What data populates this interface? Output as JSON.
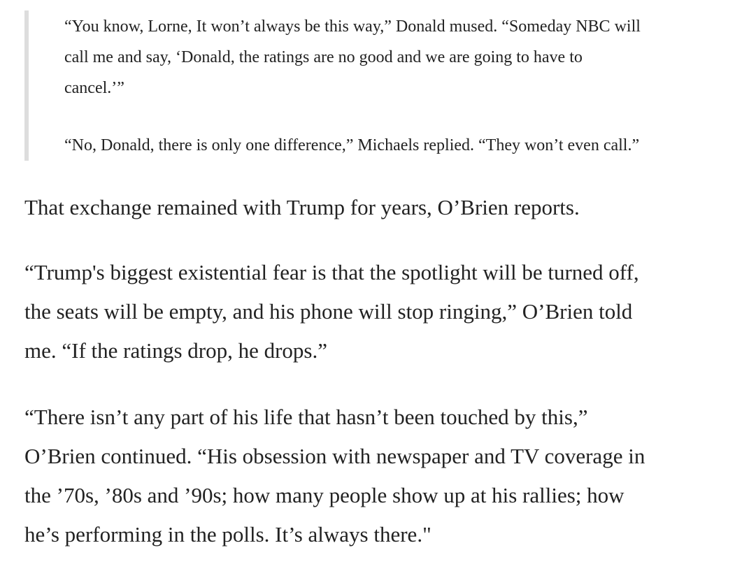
{
  "blockquote": {
    "paragraphs": [
      [
        "“You know, Lorne, It won’t always be this way,” Donald mused. “Someday NBC will",
        "call me and say, ‘Donald, the ratings are no good and we are going to have to",
        "cancel.’”"
      ],
      [
        "“No, Donald, there is only one difference,” Michaels replied. “They won’t even call.”"
      ]
    ]
  },
  "paragraphs": [
    [
      "That exchange remained with Trump for years, O’Brien reports."
    ],
    [
      "“Trump's biggest existential fear is that the spotlight will be turned off,",
      "the seats will be empty, and his phone will stop ringing,” O’Brien told",
      "me. “If the ratings drop, he drops.”"
    ],
    [
      "“There isn’t any part of his life that hasn’t been touched by this,”",
      "O’Brien continued. “His obsession with newspaper and TV coverage in",
      "the ’70s, ’80s and ’90s; how many people show up at his rallies; how",
      "he’s performing in the polls. It’s always there.\""
    ]
  ]
}
